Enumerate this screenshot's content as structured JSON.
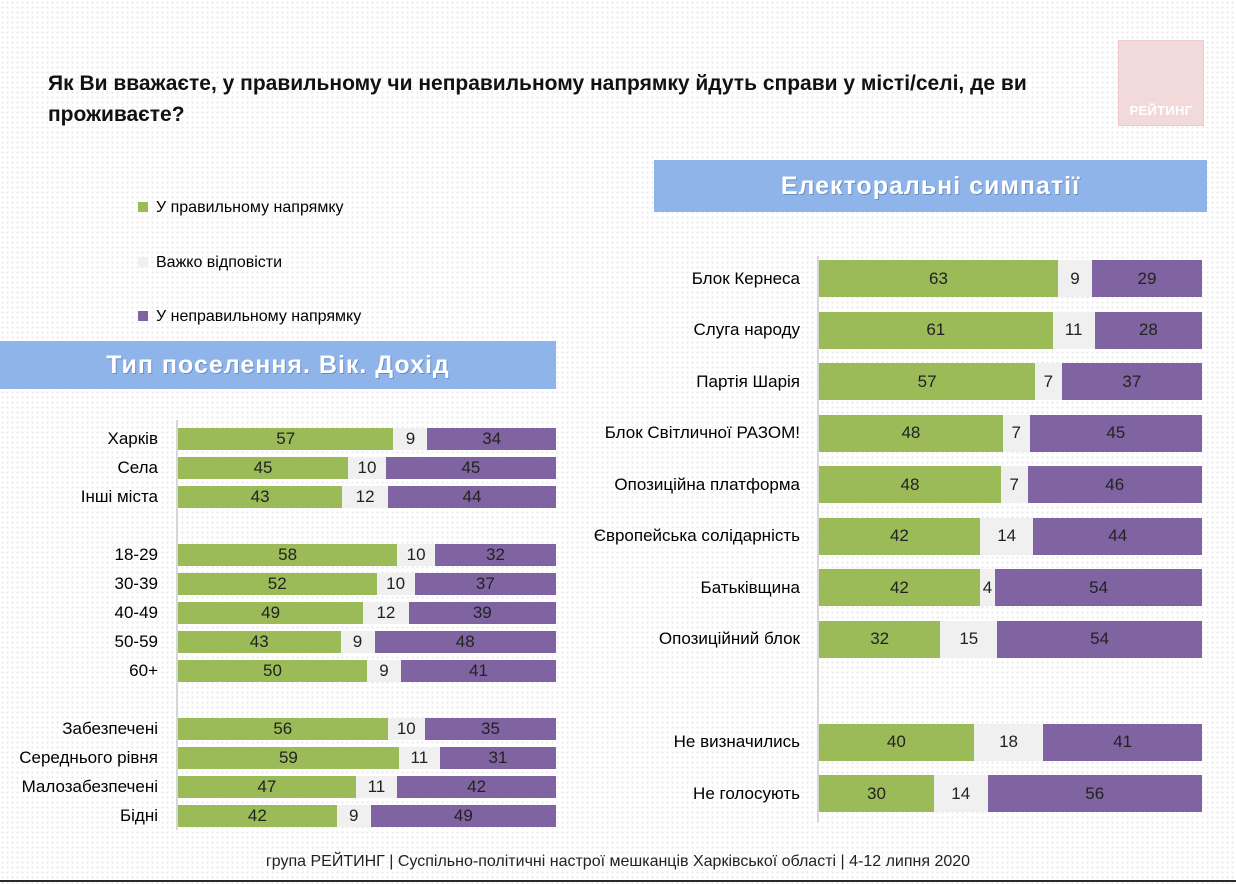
{
  "title": "Як Ви вважаєте, у правильному чи неправильному напрямку йдуть справи у місті/селі, де ви проживаєте?",
  "logo_text": "РЕЙТИНГ",
  "banner_right": "Електоральні симпатії",
  "banner_left": "Тип поселення. Вік. Дохід",
  "legend": [
    {
      "label": "У правильному напрямку",
      "color": "#9bbb59"
    },
    {
      "label": "Важко відповісти",
      "color": "#f0f0f0"
    },
    {
      "label": "У неправильному напрямку",
      "color": "#8064a2"
    }
  ],
  "colors": {
    "right": "#9bbb59",
    "hard": "#f0f0f0",
    "wrong": "#8064a2"
  },
  "footer": "група РЕЙТИНГ  | Суспільно-політичні настрої мешканців Харківської області | 4-12 липня 2020",
  "chart_data": [
    {
      "type": "bar",
      "orientation": "horizontal",
      "stacked": true,
      "series_names": [
        "У правильному напрямку",
        "Важко відповісти",
        "У неправильному напрямку"
      ],
      "groups": [
        [
          {
            "label": "Харків",
            "values": [
              57,
              9,
              34
            ]
          },
          {
            "label": "Села",
            "values": [
              45,
              10,
              45
            ]
          },
          {
            "label": "Інші міста",
            "values": [
              43,
              12,
              44
            ]
          }
        ],
        [
          {
            "label": "18-29",
            "values": [
              58,
              10,
              32
            ]
          },
          {
            "label": "30-39",
            "values": [
              52,
              10,
              37
            ]
          },
          {
            "label": "40-49",
            "values": [
              49,
              12,
              39
            ]
          },
          {
            "label": "50-59",
            "values": [
              43,
              9,
              48
            ]
          },
          {
            "label": "60+",
            "values": [
              50,
              9,
              41
            ]
          }
        ],
        [
          {
            "label": "Забезпечені",
            "values": [
              56,
              10,
              35
            ]
          },
          {
            "label": "Середнього рівня",
            "values": [
              59,
              11,
              31
            ]
          },
          {
            "label": "Малозабезпечені",
            "values": [
              47,
              11,
              42
            ]
          },
          {
            "label": "Бідні",
            "values": [
              42,
              9,
              49
            ]
          }
        ]
      ]
    },
    {
      "type": "bar",
      "orientation": "horizontal",
      "stacked": true,
      "series_names": [
        "У правильному напрямку",
        "Важко відповісти",
        "У неправильному напрямку"
      ],
      "groups": [
        [
          {
            "label": "Блок Кернеса",
            "values": [
              63,
              9,
              29
            ]
          },
          {
            "label": "Слуга народу",
            "values": [
              61,
              11,
              28
            ]
          },
          {
            "label": "Партія Шарія",
            "values": [
              57,
              7,
              37
            ]
          },
          {
            "label": "Блок Світличної РАЗОМ!",
            "values": [
              48,
              7,
              45
            ]
          },
          {
            "label": "Опозиційна платформа",
            "values": [
              48,
              7,
              46
            ]
          },
          {
            "label": "Європейська солідарність",
            "values": [
              42,
              14,
              44
            ]
          },
          {
            "label": "Батьківщина",
            "values": [
              42,
              4,
              54
            ]
          },
          {
            "label": "Опозиційний блок",
            "values": [
              32,
              15,
              54
            ]
          }
        ],
        [
          {
            "label": "Не визначились",
            "values": [
              40,
              18,
              41
            ]
          },
          {
            "label": "Не голосують",
            "values": [
              30,
              14,
              56
            ]
          }
        ]
      ]
    }
  ]
}
